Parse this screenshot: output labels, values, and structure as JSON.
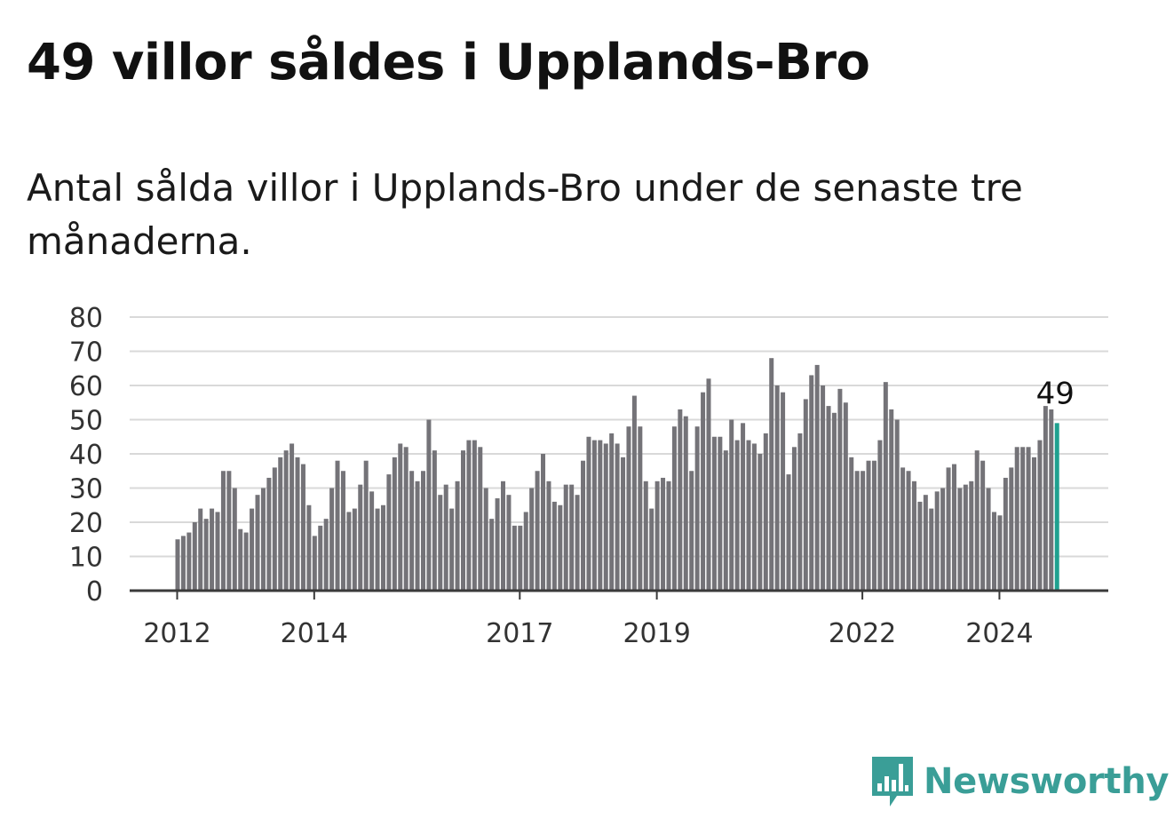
{
  "title": "49 villor såldes i Upplands-Bro",
  "subtitle": "Antal sålda villor i Upplands-Bro under de senaste tre månaderna.",
  "brand": {
    "name": "Newsworthy",
    "color": "#3a9e97",
    "icon": "bar-chart-speech-bubble-icon"
  },
  "colors": {
    "bar": "#747378",
    "highlight": "#1fa08f",
    "grid": "#d9d9d9",
    "axis": "#3a3a3a"
  },
  "chart_data": {
    "type": "bar",
    "title": "49 villor såldes i Upplands-Bro",
    "ylim": [
      0,
      80
    ],
    "yticks": [
      "0",
      "10",
      "20",
      "30",
      "40",
      "50",
      "60",
      "70",
      "80"
    ],
    "xticks": [
      {
        "label": "2012",
        "index": 0
      },
      {
        "label": "2014",
        "index": 24
      },
      {
        "label": "2017",
        "index": 60
      },
      {
        "label": "2019",
        "index": 84
      },
      {
        "label": "2022",
        "index": 120
      },
      {
        "label": "2024",
        "index": 144
      }
    ],
    "start": "2012-01",
    "values": [
      15,
      16,
      17,
      20,
      24,
      21,
      24,
      23,
      35,
      35,
      30,
      18,
      17,
      24,
      28,
      30,
      33,
      36,
      39,
      41,
      43,
      39,
      37,
      25,
      16,
      19,
      21,
      30,
      38,
      35,
      23,
      24,
      31,
      38,
      29,
      24,
      25,
      34,
      39,
      43,
      42,
      35,
      32,
      35,
      50,
      41,
      28,
      31,
      24,
      32,
      41,
      44,
      44,
      42,
      30,
      21,
      27,
      32,
      28,
      19,
      19,
      23,
      30,
      35,
      40,
      32,
      26,
      25,
      31,
      31,
      28,
      38,
      45,
      44,
      44,
      43,
      46,
      43,
      39,
      48,
      57,
      48,
      32,
      24,
      32,
      33,
      32,
      48,
      53,
      51,
      35,
      48,
      58,
      62,
      45,
      45,
      41,
      50,
      44,
      49,
      44,
      43,
      40,
      46,
      68,
      60,
      58,
      34,
      42,
      46,
      56,
      63,
      66,
      60,
      54,
      52,
      59,
      55,
      39,
      35,
      35,
      38,
      38,
      44,
      61,
      53,
      50,
      36,
      35,
      32,
      26,
      28,
      24,
      29,
      30,
      36,
      37,
      30,
      31,
      32,
      41,
      38,
      30,
      23,
      22,
      33,
      36,
      42,
      42,
      42,
      39,
      44,
      54,
      53,
      49
    ],
    "highlight_last": true,
    "last_label": "49",
    "grid": true,
    "legend": "none"
  }
}
